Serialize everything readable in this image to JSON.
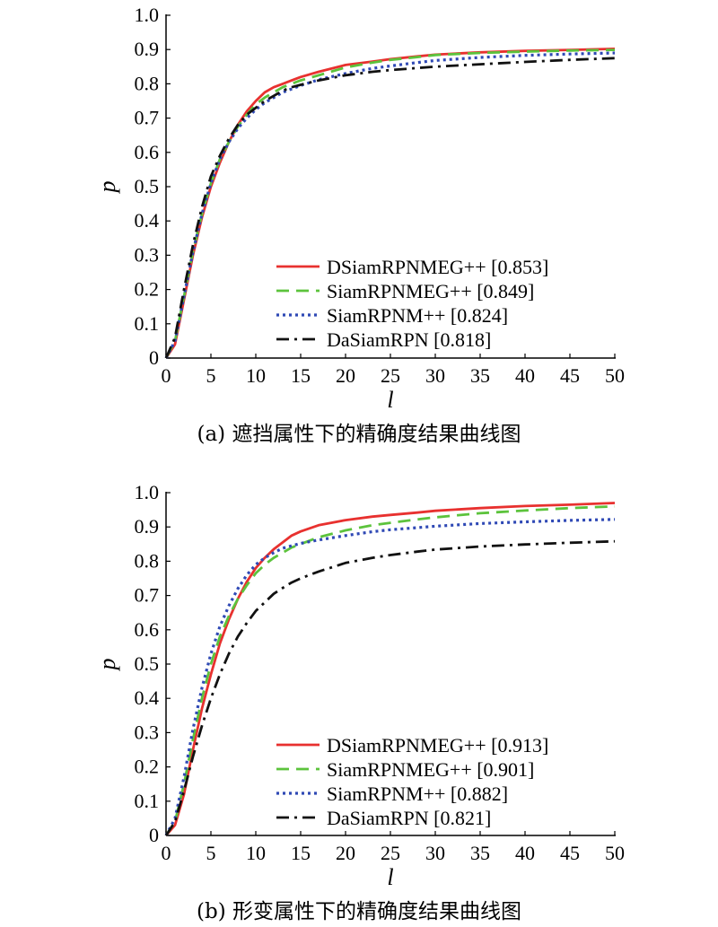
{
  "chart_data": [
    {
      "type": "line",
      "caption": "(a) 遮挡属性下的精确度结果曲线图",
      "xlabel": "l",
      "ylabel": "p",
      "xlim": [
        0,
        50
      ],
      "ylim": [
        0,
        1.0
      ],
      "xticks": [
        "0",
        "5",
        "10",
        "15",
        "20",
        "25",
        "30",
        "35",
        "40",
        "45",
        "50"
      ],
      "yticks": [
        "0",
        "0.1",
        "0.2",
        "0.3",
        "0.4",
        "0.5",
        "0.6",
        "0.7",
        "0.8",
        "0.9",
        "1.0"
      ],
      "grid": false,
      "legend_position": "bottom-right",
      "series": [
        {
          "name": "DSiamRPNMEG++ [0.853]",
          "color": "#e8312f",
          "dash": "solid",
          "x": [
            0,
            1,
            2,
            3,
            4,
            5,
            6,
            7,
            8,
            9,
            10,
            11,
            12,
            13,
            14,
            15,
            17,
            20,
            23,
            25,
            28,
            30,
            35,
            40,
            45,
            50
          ],
          "y": [
            0,
            0.04,
            0.17,
            0.3,
            0.41,
            0.5,
            0.57,
            0.63,
            0.68,
            0.72,
            0.75,
            0.775,
            0.79,
            0.8,
            0.81,
            0.82,
            0.835,
            0.855,
            0.865,
            0.872,
            0.88,
            0.885,
            0.892,
            0.896,
            0.899,
            0.902
          ]
        },
        {
          "name": "SiamRPNMEG++ [0.849]",
          "color": "#5cc33c",
          "dash": "dashed",
          "x": [
            0,
            1,
            2,
            3,
            4,
            5,
            6,
            7,
            8,
            9,
            10,
            11,
            12,
            13,
            14,
            15,
            17,
            20,
            23,
            25,
            28,
            30,
            35,
            40,
            45,
            50
          ],
          "y": [
            0,
            0.05,
            0.18,
            0.31,
            0.42,
            0.51,
            0.58,
            0.63,
            0.675,
            0.71,
            0.74,
            0.76,
            0.775,
            0.79,
            0.8,
            0.81,
            0.825,
            0.848,
            0.862,
            0.87,
            0.878,
            0.884,
            0.89,
            0.894,
            0.897,
            0.899
          ]
        },
        {
          "name": "SiamRPNM++ [0.824]",
          "color": "#2f49b5",
          "dash": "dotted",
          "x": [
            0,
            1,
            2,
            3,
            4,
            5,
            6,
            7,
            8,
            9,
            10,
            11,
            12,
            13,
            14,
            15,
            17,
            20,
            23,
            25,
            28,
            30,
            35,
            40,
            45,
            50
          ],
          "y": [
            0,
            0.05,
            0.18,
            0.31,
            0.42,
            0.51,
            0.58,
            0.63,
            0.67,
            0.7,
            0.725,
            0.745,
            0.76,
            0.775,
            0.785,
            0.795,
            0.812,
            0.83,
            0.845,
            0.852,
            0.862,
            0.868,
            0.877,
            0.883,
            0.887,
            0.89
          ]
        },
        {
          "name": "DaSiamRPN [0.818]",
          "color": "#111111",
          "dash": "dashdot",
          "x": [
            0,
            1,
            2,
            3,
            4,
            5,
            6,
            7,
            8,
            9,
            10,
            11,
            12,
            13,
            14,
            15,
            17,
            20,
            23,
            25,
            28,
            30,
            35,
            40,
            45,
            50
          ],
          "y": [
            0,
            0.06,
            0.2,
            0.33,
            0.44,
            0.53,
            0.59,
            0.64,
            0.68,
            0.71,
            0.73,
            0.75,
            0.765,
            0.78,
            0.79,
            0.797,
            0.81,
            0.825,
            0.835,
            0.84,
            0.846,
            0.85,
            0.857,
            0.864,
            0.87,
            0.875
          ]
        }
      ]
    },
    {
      "type": "line",
      "caption": "(b) 形变属性下的精确度结果曲线图",
      "xlabel": "l",
      "ylabel": "p",
      "xlim": [
        0,
        50
      ],
      "ylim": [
        0,
        1.0
      ],
      "xticks": [
        "0",
        "5",
        "10",
        "15",
        "20",
        "25",
        "30",
        "35",
        "40",
        "45",
        "50"
      ],
      "yticks": [
        "0",
        "0.1",
        "0.2",
        "0.3",
        "0.4",
        "0.5",
        "0.6",
        "0.7",
        "0.8",
        "0.9",
        "1.0"
      ],
      "grid": false,
      "legend_position": "bottom-right",
      "series": [
        {
          "name": "DSiamRPNMEG++ [0.913]",
          "color": "#e8312f",
          "dash": "solid",
          "x": [
            0,
            1,
            2,
            3,
            4,
            5,
            6,
            7,
            8,
            9,
            10,
            11,
            12,
            13,
            14,
            15,
            17,
            20,
            23,
            25,
            28,
            30,
            35,
            40,
            45,
            50
          ],
          "y": [
            0,
            0.03,
            0.12,
            0.25,
            0.37,
            0.47,
            0.56,
            0.63,
            0.69,
            0.74,
            0.78,
            0.81,
            0.835,
            0.855,
            0.875,
            0.887,
            0.905,
            0.92,
            0.93,
            0.935,
            0.942,
            0.947,
            0.955,
            0.961,
            0.965,
            0.97
          ]
        },
        {
          "name": "SiamRPNMEG++ [0.901]",
          "color": "#5cc33c",
          "dash": "dashed",
          "x": [
            0,
            1,
            2,
            3,
            4,
            5,
            6,
            7,
            8,
            9,
            10,
            11,
            12,
            13,
            14,
            15,
            17,
            20,
            23,
            25,
            28,
            30,
            35,
            40,
            45,
            50
          ],
          "y": [
            0,
            0.04,
            0.15,
            0.28,
            0.4,
            0.5,
            0.58,
            0.64,
            0.69,
            0.73,
            0.765,
            0.79,
            0.81,
            0.825,
            0.84,
            0.85,
            0.87,
            0.89,
            0.905,
            0.912,
            0.922,
            0.928,
            0.94,
            0.948,
            0.955,
            0.96
          ]
        },
        {
          "name": "SiamRPNM++ [0.882]",
          "color": "#2f49b5",
          "dash": "dotted",
          "x": [
            0,
            1,
            2,
            3,
            4,
            5,
            6,
            7,
            8,
            9,
            10,
            11,
            12,
            13,
            14,
            15,
            17,
            20,
            23,
            25,
            28,
            30,
            35,
            40,
            45,
            50
          ],
          "y": [
            0,
            0.05,
            0.17,
            0.31,
            0.43,
            0.53,
            0.61,
            0.67,
            0.72,
            0.76,
            0.79,
            0.81,
            0.825,
            0.838,
            0.845,
            0.852,
            0.862,
            0.875,
            0.886,
            0.892,
            0.898,
            0.902,
            0.91,
            0.915,
            0.919,
            0.922
          ]
        },
        {
          "name": "DaSiamRPN [0.821]",
          "color": "#111111",
          "dash": "dashdot",
          "x": [
            0,
            1,
            2,
            3,
            4,
            5,
            6,
            7,
            8,
            9,
            10,
            11,
            12,
            13,
            14,
            15,
            17,
            20,
            23,
            25,
            28,
            30,
            35,
            40,
            45,
            50
          ],
          "y": [
            0,
            0.04,
            0.13,
            0.23,
            0.32,
            0.4,
            0.47,
            0.53,
            0.58,
            0.62,
            0.655,
            0.68,
            0.705,
            0.722,
            0.738,
            0.75,
            0.77,
            0.795,
            0.81,
            0.818,
            0.828,
            0.834,
            0.843,
            0.849,
            0.854,
            0.858
          ]
        }
      ]
    }
  ]
}
